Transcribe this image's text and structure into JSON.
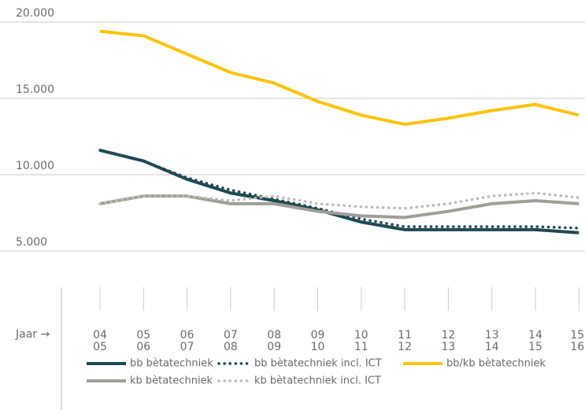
{
  "chart_data": {
    "type": "line",
    "x_label": "Jaar →",
    "categories": [
      [
        "04",
        "05"
      ],
      [
        "05",
        "06"
      ],
      [
        "06",
        "07"
      ],
      [
        "07",
        "08"
      ],
      [
        "08",
        "09"
      ],
      [
        "09",
        "10"
      ],
      [
        "10",
        "11"
      ],
      [
        "11",
        "12"
      ],
      [
        "12",
        "13"
      ],
      [
        "13",
        "14"
      ],
      [
        "14",
        "15"
      ],
      [
        "15",
        "16"
      ]
    ],
    "ylim": [
      5000,
      20000
    ],
    "yticks": [
      {
        "value": 5000,
        "label": "5.000"
      },
      {
        "value": 10000,
        "label": "10.000"
      },
      {
        "value": 15000,
        "label": "15.000"
      },
      {
        "value": 20000,
        "label": "20.000"
      }
    ],
    "grid": true,
    "series": [
      {
        "name": "bb bètatechniek",
        "color": "#1e4a52",
        "dashed": false,
        "values": [
          11600,
          10900,
          9700,
          8800,
          8300,
          7700,
          6900,
          6400,
          6400,
          6400,
          6400,
          6200
        ]
      },
      {
        "name": "bb bètatechniek incl. ICT",
        "color": "#1e4a52",
        "dashed": true,
        "values": [
          11600,
          10900,
          9800,
          9000,
          8400,
          7800,
          7100,
          6600,
          6600,
          6600,
          6600,
          6500
        ]
      },
      {
        "name": "bb/kb bètatechniek",
        "color": "#fcc30b",
        "dashed": false,
        "values": [
          19400,
          19100,
          17900,
          16700,
          16000,
          14800,
          13900,
          13300,
          13700,
          14200,
          14600,
          13900
        ]
      },
      {
        "name": "kb bètatechniek",
        "color": "#a09e98",
        "dashed": false,
        "values": [
          8100,
          8600,
          8600,
          8100,
          8100,
          7600,
          7300,
          7200,
          7600,
          8100,
          8300,
          8100
        ]
      },
      {
        "name": "kb bètatechniek incl. ICT",
        "color": "#bdbab4",
        "dashed": true,
        "values": [
          8100,
          8600,
          8600,
          8300,
          8600,
          8100,
          7900,
          7800,
          8100,
          8600,
          8800,
          8500
        ]
      }
    ]
  }
}
